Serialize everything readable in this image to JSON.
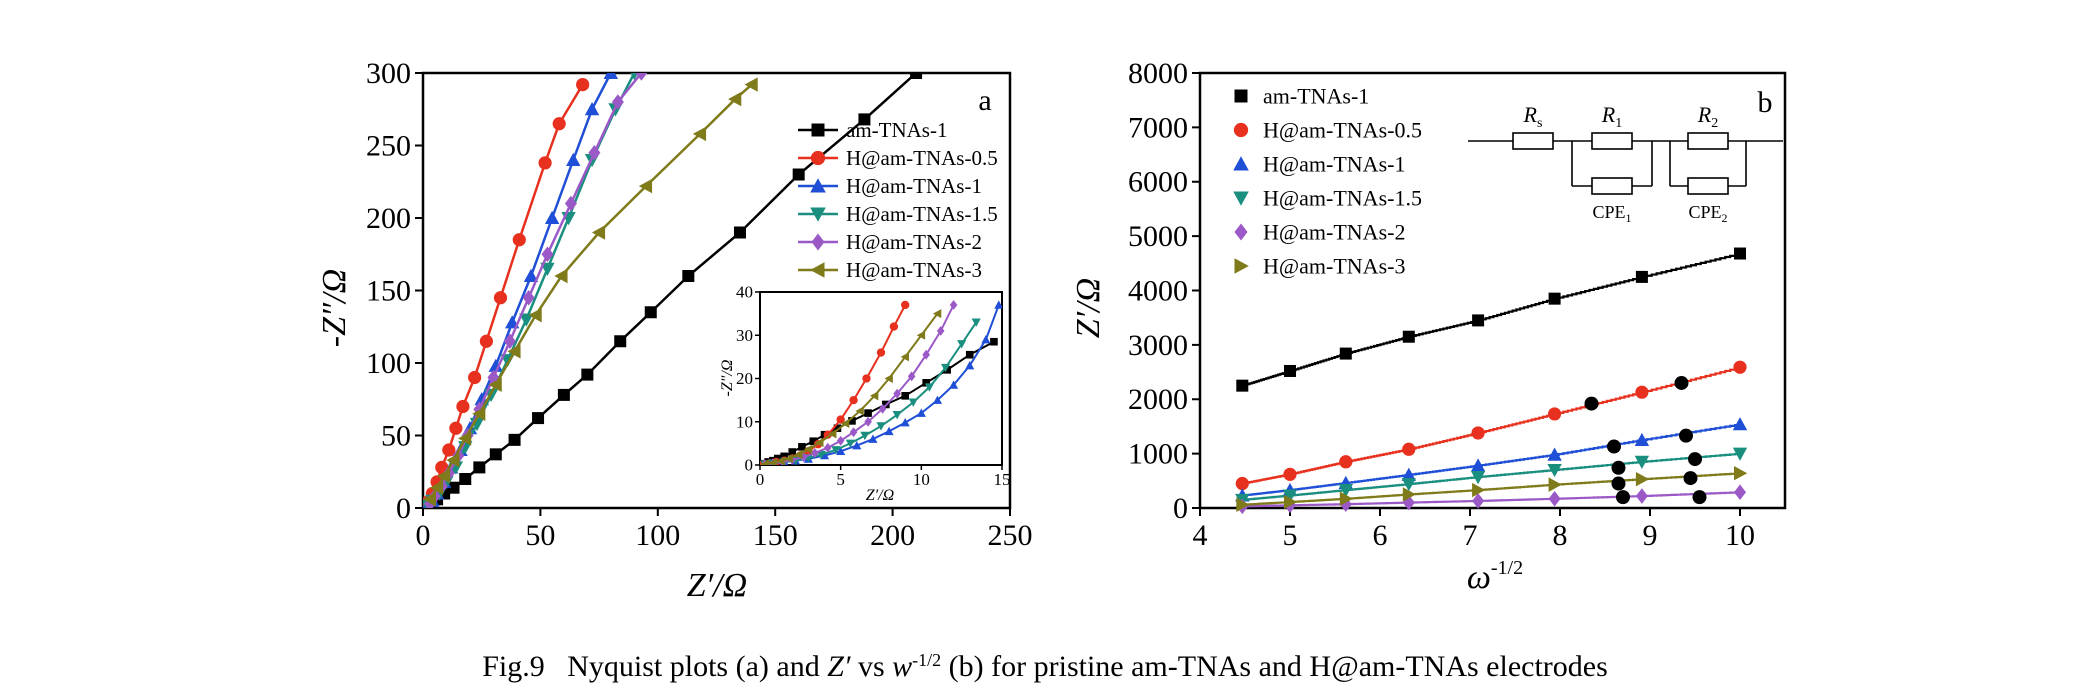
{
  "caption": {
    "label": "Fig.9",
    "text_before": "Nyquist plots (a) and",
    "zprime": "Z′",
    "vs": "vs",
    "w": "w",
    "w_exp": "-1/2",
    "text_after": "(b) for pristine am-TNAs and H@am-TNAs electrodes"
  },
  "chart_data": [
    {
      "id": "a",
      "type": "line",
      "panel_label": "a",
      "xlabel": "Z′/Ω",
      "ylabel": "-Z″/Ω",
      "xlim": [
        0,
        250
      ],
      "ylim": [
        0,
        300
      ],
      "xticks": [
        0,
        50,
        100,
        150,
        200,
        250
      ],
      "yticks": [
        0,
        50,
        100,
        150,
        200,
        250,
        300
      ],
      "legend_position": "upper-right",
      "series": [
        {
          "name": "am-TNAs-1",
          "color": "#000000",
          "marker": "square",
          "x": [
            3,
            6,
            9,
            13,
            18,
            24,
            31,
            39,
            49,
            60,
            70,
            84,
            97,
            113,
            135,
            160,
            188,
            210
          ],
          "y": [
            3,
            6,
            10,
            14,
            20,
            28,
            37,
            47,
            62,
            78,
            92,
            115,
            135,
            160,
            190,
            230,
            268,
            300
          ]
        },
        {
          "name": "H@am-TNAs-0.5",
          "color": "#e8301e",
          "marker": "circle",
          "x": [
            2,
            4,
            6,
            8,
            11,
            14,
            17,
            22,
            27,
            33,
            41,
            52,
            58,
            68
          ],
          "y": [
            4,
            10,
            18,
            28,
            40,
            55,
            70,
            90,
            115,
            145,
            185,
            238,
            265,
            292
          ]
        },
        {
          "name": "H@am-TNAs-1",
          "color": "#1f4fd6",
          "marker": "triangle-up",
          "x": [
            2,
            4,
            6,
            9,
            12,
            16,
            20,
            25,
            31,
            38,
            46,
            55,
            64,
            72,
            80
          ],
          "y": [
            2,
            5,
            10,
            18,
            28,
            40,
            55,
            75,
            98,
            128,
            160,
            200,
            240,
            275,
            300
          ]
        },
        {
          "name": "H@am-TNAs-1.5",
          "color": "#1a8f80",
          "marker": "triangle-down",
          "x": [
            2,
            4,
            7,
            10,
            14,
            18,
            23,
            29,
            36,
            44,
            53,
            62,
            72,
            82,
            90
          ],
          "y": [
            2,
            5,
            10,
            18,
            28,
            42,
            58,
            78,
            102,
            130,
            165,
            200,
            240,
            275,
            300
          ]
        },
        {
          "name": "H@am-TNAs-2",
          "color": "#9b59c8",
          "marker": "diamond",
          "x": [
            3,
            5,
            8,
            11,
            15,
            19,
            24,
            30,
            37,
            45,
            53,
            63,
            73,
            83,
            93
          ],
          "y": [
            3,
            8,
            15,
            24,
            36,
            50,
            68,
            90,
            115,
            145,
            175,
            210,
            245,
            280,
            300
          ]
        },
        {
          "name": "H@am-TNAs-3",
          "color": "#7f7a1a",
          "marker": "triangle-left",
          "x": [
            3,
            6,
            9,
            13,
            18,
            24,
            31,
            39,
            48,
            59,
            75,
            95,
            118,
            133,
            140
          ],
          "y": [
            6,
            14,
            22,
            33,
            48,
            65,
            85,
            108,
            133,
            160,
            190,
            222,
            258,
            282,
            292
          ]
        }
      ],
      "inset": {
        "xlabel": "Z′/Ω",
        "ylabel": "-Z″/Ω",
        "xlim": [
          0,
          15
        ],
        "ylim": [
          0,
          40
        ],
        "xticks": [
          0,
          5,
          10,
          15
        ],
        "yticks": [
          0,
          10,
          20,
          30,
          40
        ],
        "series": [
          {
            "name": "am-TNAs-1",
            "x": [
              0.2,
              0.5,
              0.8,
              1.1,
              1.5,
              2,
              2.6,
              3.3,
              4,
              4.8,
              5.7,
              6.7,
              7.8,
              9,
              10.3,
              11.6,
              13,
              14.5
            ],
            "y": [
              0.3,
              0.7,
              1,
              1.5,
              2,
              3,
              4.2,
              5.5,
              7,
              8.5,
              10.2,
              12,
              14,
              16,
              19,
              22,
              25.5,
              28.5
            ]
          },
          {
            "name": "H@am-TNAs-0.5",
            "x": [
              0.2,
              0.6,
              1,
              1.5,
              2,
              2.5,
              3,
              3.6,
              4.2,
              5,
              5.8,
              6.6,
              7.5,
              8.3,
              9
            ],
            "y": [
              0.2,
              0.4,
              0.7,
              1,
              1.5,
              2.2,
              3.2,
              4.8,
              7,
              10.5,
              15,
              20,
              26,
              32,
              37
            ]
          },
          {
            "name": "H@am-TNAs-1",
            "x": [
              0.3,
              0.8,
              1.5,
              2.2,
              3,
              4,
              5,
              6,
              7,
              8,
              9,
              10,
              11,
              12,
              13,
              14,
              14.8
            ],
            "y": [
              0.2,
              0.4,
              0.7,
              1,
              1.4,
              2.2,
              3.2,
              4.5,
              6,
              7.8,
              9.8,
              12,
              15,
              18.5,
              23,
              29,
              37
            ]
          },
          {
            "name": "H@am-TNAs-1.5",
            "x": [
              0.3,
              0.8,
              1.5,
              2.2,
              3,
              3.8,
              4.7,
              5.6,
              6.5,
              7.5,
              8.5,
              9.5,
              10.5,
              11.5,
              12.5,
              13.4
            ],
            "y": [
              0.2,
              0.4,
              0.7,
              1,
              1.6,
              2.4,
              3.5,
              5,
              6.8,
              9,
              11.6,
              14.5,
              18,
              22.5,
              28,
              33
            ]
          },
          {
            "name": "H@am-TNAs-2",
            "x": [
              0.3,
              0.8,
              1.4,
              2,
              2.7,
              3.4,
              4.2,
              5,
              5.8,
              6.7,
              7.6,
              8.5,
              9.4,
              10.3,
              11.2,
              12
            ],
            "y": [
              0.2,
              0.4,
              0.7,
              1.2,
              1.8,
              2.8,
              4,
              5.6,
              7.6,
              10,
              13,
              16.5,
              20.5,
              25.5,
              31,
              37
            ]
          },
          {
            "name": "H@am-TNAs-3",
            "x": [
              0.3,
              0.8,
              1.3,
              1.8,
              2.4,
              3,
              3.7,
              4.5,
              5.3,
              6.2,
              7.1,
              8,
              9,
              10,
              11
            ],
            "y": [
              0.2,
              0.5,
              0.9,
              1.5,
              2.4,
              3.6,
              5.2,
              7.2,
              9.6,
              12.5,
              16,
              20,
              25,
              30,
              35
            ]
          }
        ]
      }
    },
    {
      "id": "b",
      "type": "line",
      "panel_label": "b",
      "xlabel": "ω",
      "xlabel_exp": "-1/2",
      "ylabel": "Z′/Ω",
      "xlim": [
        4,
        10.5
      ],
      "ylim": [
        0,
        8000
      ],
      "xticks": [
        4,
        5,
        6,
        7,
        8,
        9,
        10
      ],
      "yticks": [
        0,
        1000,
        2000,
        3000,
        4000,
        5000,
        6000,
        7000,
        8000
      ],
      "legend_position": "upper-left",
      "series": [
        {
          "name": "am-TNAs-1",
          "color": "#000000",
          "marker": "square",
          "x": [
            4.47,
            5.0,
            5.62,
            6.32,
            7.09,
            7.94,
            8.91,
            10.0
          ],
          "y": [
            2250,
            2520,
            2840,
            3150,
            3450,
            3850,
            4250,
            4680
          ]
        },
        {
          "name": "H@am-TNAs-0.5",
          "color": "#e8301e",
          "marker": "circle",
          "x": [
            4.47,
            5.0,
            5.62,
            6.32,
            7.09,
            7.94,
            8.91,
            10.0
          ],
          "y": [
            450,
            620,
            850,
            1080,
            1380,
            1730,
            2130,
            2590
          ]
        },
        {
          "name": "H@am-TNAs-1",
          "color": "#1f4fd6",
          "marker": "triangle-up",
          "x": [
            4.47,
            5.0,
            5.62,
            6.32,
            7.09,
            7.94,
            8.91,
            10.0
          ],
          "y": [
            230,
            330,
            460,
            610,
            780,
            980,
            1250,
            1540
          ]
        },
        {
          "name": "H@am-TNAs-1.5",
          "color": "#1a8f80",
          "marker": "triangle-down",
          "x": [
            4.47,
            5.0,
            5.62,
            6.32,
            7.09,
            7.94,
            8.91,
            10.0
          ],
          "y": [
            150,
            230,
            330,
            440,
            570,
            700,
            850,
            1000
          ]
        },
        {
          "name": "H@am-TNAs-2",
          "color": "#9b59c8",
          "marker": "diamond",
          "x": [
            4.47,
            5.0,
            5.62,
            6.32,
            7.09,
            7.94,
            8.91,
            10.0
          ],
          "y": [
            30,
            50,
            70,
            100,
            130,
            170,
            220,
            290
          ]
        },
        {
          "name": "H@am-TNAs-3",
          "color": "#7f7a1a",
          "marker": "triangle-right",
          "x": [
            4.47,
            5.0,
            5.62,
            6.32,
            7.09,
            7.94,
            8.91,
            10.0
          ],
          "y": [
            60,
            110,
            170,
            250,
            330,
            430,
            530,
            640
          ]
        }
      ],
      "black_markers": [
        {
          "x": 8.35,
          "y": 1920
        },
        {
          "x": 9.35,
          "y": 2300
        },
        {
          "x": 8.6,
          "y": 1130
        },
        {
          "x": 9.4,
          "y": 1330
        },
        {
          "x": 8.65,
          "y": 740
        },
        {
          "x": 9.5,
          "y": 900
        },
        {
          "x": 8.65,
          "y": 450
        },
        {
          "x": 9.45,
          "y": 550
        },
        {
          "x": 8.7,
          "y": 200
        },
        {
          "x": 9.55,
          "y": 200
        }
      ],
      "circuit": {
        "labels": {
          "rs": "R",
          "rs_sub": "s",
          "r1": "R",
          "r1_sub": "1",
          "r2": "R",
          "r2_sub": "2",
          "cpe1": "CPE",
          "cpe1_sub": "1",
          "cpe2": "CPE",
          "cpe2_sub": "2"
        }
      }
    }
  ]
}
